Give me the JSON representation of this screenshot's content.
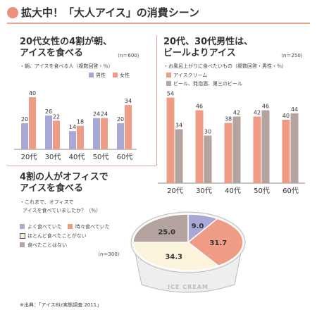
{
  "header": {
    "title": "拡大中！「大人アイス」の消費シーン"
  },
  "colors": {
    "salmon": "#ef9c86",
    "lavender": "#a9a8d5",
    "taupe": "#b5a39f",
    "cream": "#fbf3dc",
    "accent": "#ec8f7c"
  },
  "panel1": {
    "title": "20代女性の4割が朝、\nアイスを食べる",
    "n": "（n＝600）",
    "subtitle": "・朝、アイスを食べる人（複数回答・％）"
  },
  "panel2": {
    "title": "20代、30代男性は、\nビールよりアイス",
    "n": "（n＝250）",
    "subtitle": "・お風呂上がりに食べたいもの（複数回答・男性・％）"
  },
  "panel3": {
    "title": "4割の人がオフィスで\nアイスを食べる",
    "subtitle_line1": "・これまで、オフィスで",
    "subtitle_line2": "アイスを食べていましたか？（％）",
    "n": "（n＝300）",
    "cup_label": "ICE CREAM"
  },
  "source": "※出典：「アイスBiz実態調査 2011」",
  "chart_data": [
    {
      "type": "bar",
      "categories": [
        "20代",
        "30代",
        "40代",
        "50代",
        "60代"
      ],
      "series": [
        {
          "name": "男性",
          "values": [
            20,
            26,
            14,
            24,
            20
          ],
          "color": "#a9a8d5"
        },
        {
          "name": "女性",
          "values": [
            40,
            22,
            18,
            24,
            34
          ],
          "color": "#ef9c86"
        }
      ],
      "ylim": [
        0,
        45
      ]
    },
    {
      "type": "bar",
      "categories": [
        "20代",
        "30代",
        "40代",
        "50代",
        "60代"
      ],
      "series": [
        {
          "name": "アイスクリーム",
          "values": [
            54,
            46,
            38,
            42,
            40
          ],
          "color": "#ef9c86"
        },
        {
          "name": "ビール、発泡酒、第三のビール",
          "values": [
            34,
            30,
            42,
            46,
            44
          ],
          "color": "#b5a39f"
        }
      ],
      "ylim": [
        0,
        58
      ]
    },
    {
      "type": "pie",
      "slices": [
        {
          "name": "よく食べていた",
          "value": 9.0,
          "color": "#a9a8d5"
        },
        {
          "name": "時々食べていた",
          "value": 31.7,
          "color": "#ef9c86"
        },
        {
          "name": "ほとんど食べたことがない",
          "value": 34.3,
          "color": "#fbf3dc"
        },
        {
          "name": "食べたことはない",
          "value": 25.0,
          "color": "#b5a39f"
        }
      ]
    }
  ]
}
